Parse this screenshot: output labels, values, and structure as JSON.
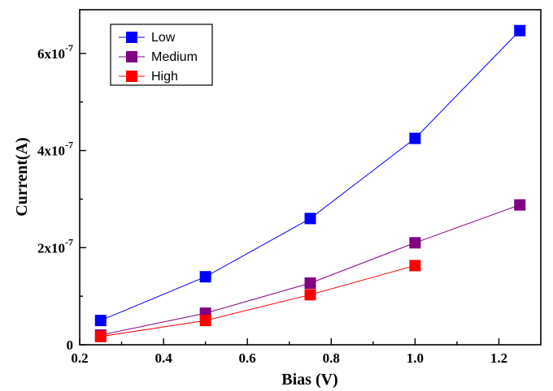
{
  "chart_data": {
    "type": "line",
    "title": "",
    "xlabel": "Bias (V)",
    "ylabel": "Current(A)",
    "xlim": [
      0.2,
      1.3
    ],
    "ylim": [
      0,
      6.9e-07
    ],
    "x_ticks": [
      {
        "value": 0.2,
        "label": "0.2"
      },
      {
        "value": 0.4,
        "label": "0.4"
      },
      {
        "value": 0.6,
        "label": "0.6"
      },
      {
        "value": 0.8,
        "label": "0.8"
      },
      {
        "value": 1.0,
        "label": "1.0"
      },
      {
        "value": 1.2,
        "label": "1.2"
      }
    ],
    "y_ticks": [
      {
        "value": 0,
        "mantissa": "0",
        "exponent": ""
      },
      {
        "value": 2e-07,
        "mantissa": "2x10",
        "exponent": "-7"
      },
      {
        "value": 4e-07,
        "mantissa": "4x10",
        "exponent": "-7"
      },
      {
        "value": 6e-07,
        "mantissa": "6x10",
        "exponent": "-7"
      }
    ],
    "grid": false,
    "legend_position": "top-left",
    "series": [
      {
        "name": "Low",
        "color": "#0000ff",
        "x": [
          0.25,
          0.5,
          0.75,
          1.0,
          1.25
        ],
        "y": [
          5e-08,
          1.4e-07,
          2.6e-07,
          4.25e-07,
          6.47e-07
        ]
      },
      {
        "name": "Medium",
        "color": "#800080",
        "x": [
          0.25,
          0.5,
          0.75,
          1.0,
          1.25
        ],
        "y": [
          2e-08,
          6.5e-08,
          1.27e-07,
          2.1e-07,
          2.88e-07
        ]
      },
      {
        "name": "High",
        "color": "#ff0000",
        "x": [
          0.25,
          0.5,
          0.75,
          1.0
        ],
        "y": [
          1.7e-08,
          5e-08,
          1.03e-07,
          1.63e-07
        ]
      }
    ]
  }
}
